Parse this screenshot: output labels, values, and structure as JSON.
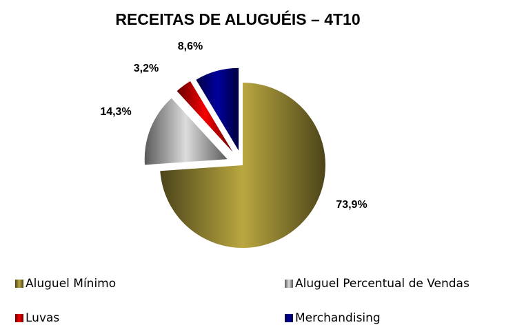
{
  "chart_data": {
    "type": "pie",
    "title": "RECEITAS DE ALUGUÉIS – 4T10",
    "categories": [
      "Aluguel Mínimo",
      "Aluguel Percentual de Vendas",
      "Luvas",
      "Merchandising"
    ],
    "values": [
      73.9,
      14.3,
      3.2,
      8.6
    ],
    "value_labels": [
      "73,9%",
      "14,3%",
      "3,2%",
      "8,6%"
    ],
    "colors": [
      "#a8983a",
      "#c8c8c8",
      "#e00000",
      "#000090"
    ],
    "legend": "bottom"
  }
}
